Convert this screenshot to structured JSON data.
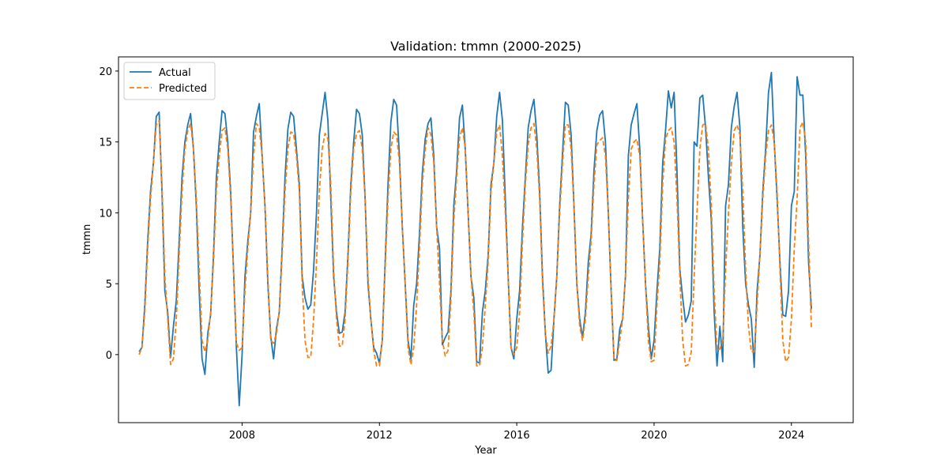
{
  "chart_data": {
    "type": "line",
    "title": "Validation: tmmn (2000-2025)",
    "xlabel": "Year",
    "ylabel": "tmmn",
    "xlim": [
      2004.4,
      2025.8
    ],
    "ylim": [
      -4.8,
      21.0
    ],
    "xticks": [
      2008,
      2012,
      2016,
      2020,
      2024
    ],
    "yticks": [
      0,
      5,
      10,
      15,
      20
    ],
    "grid": false,
    "legend_position": "top-left",
    "colors": {
      "actual": "#1f77b4",
      "predicted": "#ff7f0e"
    },
    "x_start": "2005-01",
    "x_step": "monthly",
    "series": [
      {
        "name": "Actual",
        "style": "solid",
        "values": [
          0.2,
          0.5,
          3.5,
          8.0,
          11.5,
          13.5,
          16.8,
          17.1,
          11.5,
          4.5,
          3.0,
          -0.2,
          2.0,
          3.8,
          8.0,
          12.5,
          15.0,
          16.2,
          17.0,
          14.5,
          10.5,
          4.5,
          -0.3,
          -1.4,
          1.5,
          2.8,
          7.0,
          12.5,
          15.0,
          17.2,
          17.0,
          15.0,
          11.5,
          6.0,
          0.5,
          -3.6,
          0.0,
          5.5,
          8.0,
          10.0,
          15.7,
          16.8,
          17.7,
          14.0,
          10.5,
          5.0,
          1.3,
          -0.3,
          1.8,
          3.0,
          7.5,
          12.5,
          15.9,
          17.1,
          16.8,
          14.5,
          12.0,
          5.5,
          4.0,
          3.2,
          3.5,
          6.0,
          10.0,
          15.5,
          17.0,
          18.5,
          16.5,
          11.0,
          5.5,
          3.0,
          1.5,
          1.6,
          3.0,
          7.0,
          12.0,
          15.0,
          17.3,
          17.0,
          15.5,
          11.0,
          5.0,
          2.5,
          0.5,
          0.1,
          -0.6,
          1.0,
          6.5,
          12.0,
          16.4,
          18.0,
          17.6,
          14.0,
          9.0,
          5.0,
          1.0,
          -0.3,
          3.5,
          5.0,
          8.5,
          12.8,
          15.2,
          16.3,
          16.7,
          14.0,
          9.0,
          7.5,
          0.7,
          1.2,
          1.6,
          4.5,
          10.5,
          13.0,
          16.7,
          17.6,
          14.5,
          10.0,
          5.5,
          4.0,
          -0.5,
          -0.6,
          3.0,
          4.5,
          7.0,
          12.0,
          13.5,
          16.8,
          18.5,
          16.5,
          11.0,
          5.5,
          0.5,
          -0.3,
          2.5,
          4.5,
          9.0,
          12.5,
          16.0,
          17.2,
          18.0,
          15.5,
          11.5,
          5.5,
          1.5,
          -1.3,
          -1.1,
          2.5,
          5.5,
          10.5,
          14.2,
          17.8,
          17.6,
          15.5,
          10.5,
          5.0,
          2.5,
          1.2,
          3.0,
          6.5,
          8.5,
          13.0,
          15.8,
          16.9,
          17.2,
          15.0,
          10.0,
          4.5,
          -0.4,
          -0.3,
          1.8,
          2.5,
          5.5,
          14.0,
          16.2,
          17.0,
          17.7,
          14.5,
          9.5,
          5.0,
          2.0,
          -0.3,
          1.0,
          4.5,
          7.5,
          13.5,
          15.8,
          18.6,
          17.4,
          18.5,
          13.0,
          6.0,
          4.0,
          2.3,
          2.8,
          3.8,
          15.0,
          14.7,
          18.1,
          18.3,
          16.0,
          12.5,
          9.5,
          3.0,
          -0.8,
          2.0,
          -0.5,
          10.5,
          12.0,
          16.0,
          17.5,
          18.5,
          16.0,
          9.0,
          5.0,
          3.5,
          2.5,
          -0.9,
          4.5,
          7.0,
          11.5,
          14.5,
          18.5,
          19.9,
          15.0,
          11.0,
          6.5,
          2.8,
          2.7,
          4.5,
          10.5,
          11.5,
          19.6,
          18.3,
          18.3,
          14.0,
          6.5,
          3.2
        ]
      },
      {
        "name": "Predicted",
        "style": "dashed",
        "values": [
          0.0,
          0.5,
          3.0,
          7.5,
          11.0,
          13.5,
          16.2,
          16.5,
          12.0,
          5.5,
          2.5,
          -0.7,
          -0.3,
          2.5,
          7.0,
          11.5,
          14.5,
          15.8,
          16.3,
          14.5,
          11.0,
          6.0,
          1.0,
          0.2,
          1.0,
          3.0,
          6.5,
          11.5,
          14.0,
          15.8,
          16.0,
          14.5,
          11.0,
          6.0,
          0.8,
          0.3,
          0.5,
          4.5,
          7.5,
          10.0,
          14.0,
          16.3,
          16.0,
          14.0,
          10.5,
          5.5,
          1.0,
          0.8,
          1.5,
          3.0,
          7.0,
          11.5,
          14.5,
          15.7,
          15.6,
          14.0,
          11.5,
          5.0,
          1.0,
          -0.2,
          -0.2,
          2.5,
          6.5,
          11.5,
          14.5,
          15.6,
          15.2,
          12.0,
          6.0,
          2.5,
          0.6,
          0.6,
          2.5,
          6.5,
          11.5,
          14.5,
          15.6,
          15.8,
          14.5,
          11.0,
          5.5,
          2.5,
          0.3,
          -0.8,
          -0.8,
          1.0,
          6.0,
          11.0,
          14.5,
          15.7,
          15.5,
          13.5,
          9.0,
          5.0,
          0.5,
          -0.7,
          0.5,
          3.5,
          7.5,
          12.0,
          14.5,
          16.0,
          15.5,
          13.5,
          9.0,
          5.0,
          1.0,
          -0.1,
          0.3,
          4.0,
          9.5,
          12.5,
          15.3,
          16.0,
          14.5,
          10.0,
          5.5,
          3.0,
          -0.8,
          -0.8,
          0.5,
          3.5,
          6.5,
          11.5,
          13.5,
          15.7,
          16.2,
          14.0,
          10.0,
          5.5,
          0.5,
          0.0,
          0.5,
          3.0,
          8.0,
          12.0,
          14.8,
          16.0,
          16.3,
          14.5,
          11.0,
          5.0,
          1.5,
          0.1,
          0.6,
          2.5,
          5.5,
          10.0,
          13.5,
          16.2,
          16.2,
          14.5,
          10.5,
          5.0,
          2.0,
          1.0,
          2.5,
          5.5,
          8.0,
          12.0,
          14.8,
          15.1,
          15.3,
          14.0,
          10.0,
          4.5,
          -0.4,
          -0.4,
          1.0,
          2.5,
          5.5,
          11.0,
          14.5,
          15.0,
          15.2,
          14.0,
          9.5,
          5.0,
          1.0,
          -0.5,
          -0.4,
          3.5,
          6.5,
          12.0,
          15.2,
          15.8,
          16.0,
          15.0,
          11.0,
          5.5,
          1.0,
          -0.8,
          -0.7,
          0.2,
          5.5,
          10.0,
          14.5,
          16.2,
          16.3,
          14.5,
          10.5,
          4.5,
          0.3,
          0.4,
          1.0,
          6.0,
          10.0,
          13.5,
          15.8,
          16.2,
          15.5,
          11.5,
          6.0,
          2.0,
          0.2,
          0.2,
          3.5,
          7.0,
          11.0,
          14.0,
          15.8,
          16.2,
          15.0,
          11.5,
          6.0,
          1.0,
          -0.5,
          -0.2,
          2.5,
          7.5,
          11.0,
          16.0,
          16.4,
          15.0,
          8.0,
          1.8
        ]
      }
    ]
  }
}
